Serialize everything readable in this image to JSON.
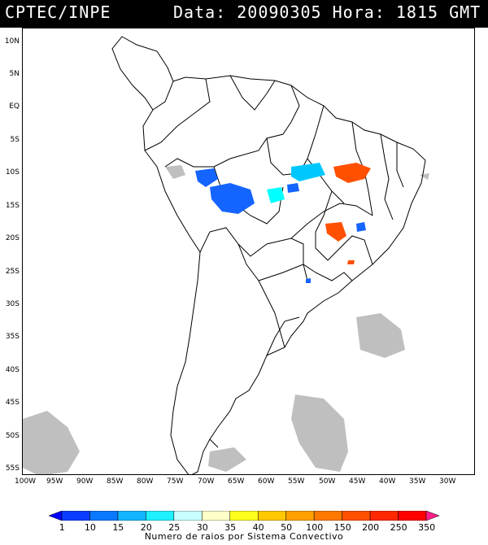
{
  "header": {
    "source": "CPTEC/INPE",
    "datetime": "Data: 20090305 Hora: 1815 GMT"
  },
  "map": {
    "lat_labels": [
      "10N",
      "5N",
      "EQ",
      "5S",
      "10S",
      "15S",
      "20S",
      "25S",
      "30S",
      "35S",
      "40S",
      "45S",
      "50S",
      "55S"
    ],
    "lon_labels": [
      "100W",
      "95W",
      "90W",
      "85W",
      "80W",
      "75W",
      "70W",
      "65W",
      "60W",
      "55W",
      "50W",
      "45W",
      "40W",
      "35W",
      "30W"
    ]
  },
  "legend": {
    "levels": [
      "1",
      "10",
      "15",
      "20",
      "25",
      "30",
      "35",
      "40",
      "50",
      "100",
      "150",
      "200",
      "250",
      "350"
    ],
    "colors": [
      "#0000ff",
      "#0a3cff",
      "#0a78ff",
      "#12b4ff",
      "#1ef0ff",
      "#c8ffff",
      "#ffffc8",
      "#ffff1e",
      "#ffc800",
      "#ffa000",
      "#ff7800",
      "#ff5000",
      "#ff2800",
      "#ff0000",
      "#ff1e8c"
    ],
    "caption": "Numero de raios por Sistema Convectivo"
  },
  "systems": [
    {
      "name": "bolivia-cluster",
      "level": "10",
      "color": "#1464ff"
    },
    {
      "name": "western-amazon-cluster",
      "level": "10",
      "color": "#1464ff"
    },
    {
      "name": "para-cyan-cluster",
      "level": "20",
      "color": "#00c8ff"
    },
    {
      "name": "mato-grosso-cyan",
      "level": "25",
      "color": "#00ffff"
    },
    {
      "name": "bahia-orange-cluster",
      "level": "200",
      "color": "#ff5000"
    },
    {
      "name": "minas-orange-cluster",
      "level": "200",
      "color": "#ff5000"
    }
  ]
}
